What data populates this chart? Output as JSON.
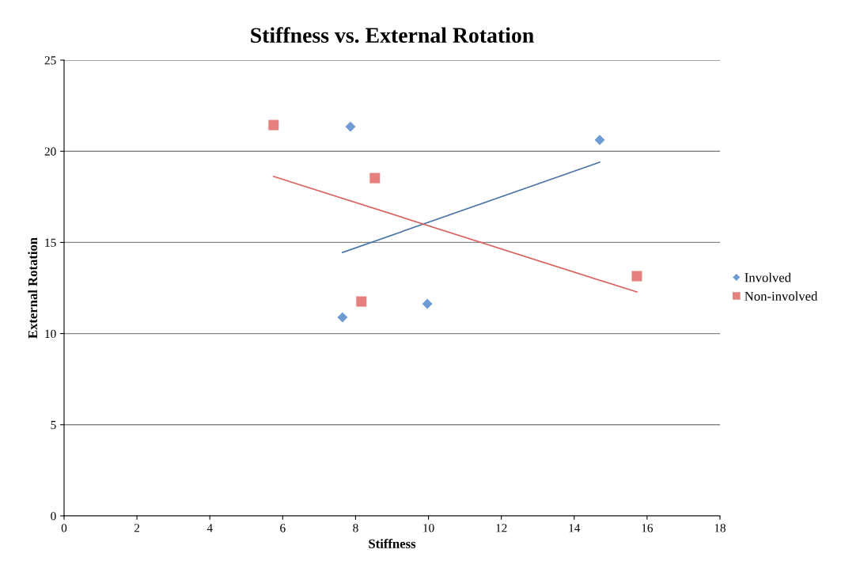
{
  "chart_data": {
    "type": "scatter",
    "title": "Stiffness vs. External Rotation",
    "xlabel": "Stiffness",
    "ylabel": "External Rotation",
    "xlim": [
      0,
      18
    ],
    "xticks": [
      0,
      2,
      4,
      6,
      8,
      10,
      12,
      14,
      16,
      18
    ],
    "ylim": [
      0,
      25
    ],
    "yticks": [
      0,
      5,
      10,
      15,
      20,
      25
    ],
    "grid": "y",
    "legend": "right",
    "series": [
      {
        "name": "Involved",
        "marker": "diamond",
        "color": "#6f9bd3",
        "x": [
          7.86,
          14.7,
          7.64,
          9.97
        ],
        "values": [
          21.35,
          20.62,
          10.89,
          11.63
        ]
      },
      {
        "name": "Non-involved",
        "marker": "square",
        "color": "#e5807e",
        "x": [
          5.75,
          8.53,
          8.16,
          15.72
        ],
        "values": [
          21.44,
          18.53,
          11.76,
          13.15
        ]
      },
      {
        "type": "line",
        "marker": "none",
        "color": "#4a74a8",
        "x": [
          7.64,
          14.7
        ],
        "values": [
          14.45,
          19.4
        ]
      },
      {
        "type": "line",
        "marker": "none",
        "color": "#d9605c",
        "x": [
          5.75,
          15.72
        ],
        "values": [
          18.62,
          12.28
        ]
      }
    ]
  }
}
